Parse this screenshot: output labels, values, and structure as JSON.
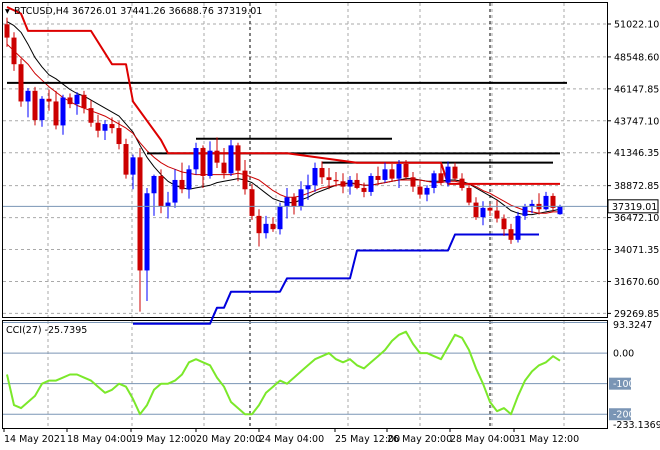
{
  "header": {
    "symbol_info": "BTCUSD,H4  36726.01 37441.26 36688.76 37319.01",
    "indicator_info": "CCI(27) -25.7395"
  },
  "colors": {
    "bull": "#0000ff",
    "bear": "#cc0000",
    "grid": "#a9a9a9",
    "ma_black": "#000000",
    "ma_red": "#cc0000",
    "ladder_red": "#dd0000",
    "ladder_blue": "#0000dd",
    "cci": "#7be82a",
    "level_line": "#7a95b5",
    "current_price_line": "#7a95b5"
  },
  "chart_data": [
    {
      "type": "candlestick",
      "title": "",
      "ylim": [
        29000,
        52600
      ],
      "y_ticks": [
        "51022.10",
        "48548.60",
        "46147.85",
        "43747.10",
        "41346.35",
        "38872.85",
        "36472.10",
        "34071.35",
        "31670.60",
        "29269.85"
      ],
      "current_price_label": "37319.01",
      "current_price": 37319.01,
      "x_labels": [
        "14 May 2021",
        "18 May 04:00",
        "19 May 12:00",
        "20 May 20:00",
        "24 May 04:00",
        "25 May 12:00",
        "26 May 20:00",
        "28 May 04:00",
        "31 May 12:00"
      ],
      "candles": [
        [
          51000,
          51500,
          49300,
          50000
        ],
        [
          50000,
          50400,
          47500,
          48000
        ],
        [
          48000,
          48400,
          44800,
          45200
        ],
        [
          45200,
          46200,
          44000,
          46000
        ],
        [
          46000,
          46300,
          43400,
          43800
        ],
        [
          43800,
          45600,
          43300,
          45400
        ],
        [
          45400,
          46100,
          44500,
          45200
        ],
        [
          45200,
          46000,
          43100,
          43400
        ],
        [
          43400,
          45700,
          42700,
          45500
        ],
        [
          45500,
          45800,
          44700,
          45000
        ],
        [
          45000,
          45900,
          44200,
          45700
        ],
        [
          45700,
          46000,
          44300,
          44700
        ],
        [
          44700,
          45300,
          43300,
          43600
        ],
        [
          43600,
          44200,
          42500,
          43000
        ],
        [
          43000,
          43800,
          42300,
          43500
        ],
        [
          43500,
          44000,
          42800,
          43200
        ],
        [
          43200,
          43700,
          41600,
          42000
        ],
        [
          42000,
          42400,
          39400,
          39700
        ],
        [
          39700,
          41200,
          38600,
          41000
        ],
        [
          41000,
          41700,
          29400,
          32500
        ],
        [
          32500,
          38700,
          30200,
          38300
        ],
        [
          38300,
          39700,
          36600,
          39600
        ],
        [
          39600,
          40100,
          36800,
          37300
        ],
        [
          37300,
          38400,
          36400,
          37600
        ],
        [
          37600,
          40100,
          37200,
          39300
        ],
        [
          39300,
          40600,
          38300,
          38600
        ],
        [
          38600,
          40400,
          37900,
          40100
        ],
        [
          40100,
          42100,
          39700,
          41700
        ],
        [
          41700,
          41900,
          38700,
          39600
        ],
        [
          39600,
          42200,
          39400,
          41500
        ],
        [
          41500,
          42500,
          40200,
          40600
        ],
        [
          40600,
          41700,
          39400,
          39800
        ],
        [
          39800,
          42300,
          39600,
          41900
        ],
        [
          41900,
          42100,
          39200,
          40000
        ],
        [
          40000,
          40800,
          38200,
          38600
        ],
        [
          38600,
          39000,
          36300,
          36600
        ],
        [
          36600,
          37100,
          34300,
          35300
        ],
        [
          35300,
          36600,
          34900,
          36000
        ],
        [
          36000,
          36500,
          35400,
          35600
        ],
        [
          35600,
          37600,
          35200,
          37300
        ],
        [
          37300,
          38700,
          36400,
          38000
        ],
        [
          38000,
          38300,
          36700,
          37300
        ],
        [
          37300,
          39200,
          37000,
          38600
        ],
        [
          38600,
          39700,
          37800,
          38900
        ],
        [
          38900,
          40600,
          38400,
          40200
        ],
        [
          40200,
          40700,
          39000,
          39500
        ],
        [
          39500,
          40200,
          38600,
          39300
        ],
        [
          39300,
          39900,
          38800,
          39200
        ],
        [
          39200,
          39800,
          38300,
          38800
        ],
        [
          38800,
          39600,
          38200,
          39300
        ],
        [
          39300,
          39800,
          38600,
          38700
        ],
        [
          38700,
          39100,
          38000,
          38400
        ],
        [
          38400,
          39800,
          38100,
          39600
        ],
        [
          39600,
          40300,
          38900,
          39300
        ],
        [
          39300,
          40600,
          39100,
          40100
        ],
        [
          40100,
          40500,
          39200,
          39400
        ],
        [
          39400,
          40800,
          38700,
          40500
        ],
        [
          40500,
          40800,
          39300,
          39500
        ],
        [
          39500,
          39900,
          38400,
          38800
        ],
        [
          38800,
          39300,
          37900,
          38200
        ],
        [
          38200,
          38900,
          37700,
          38700
        ],
        [
          38700,
          40000,
          38300,
          39800
        ],
        [
          39800,
          40500,
          38900,
          39100
        ],
        [
          39100,
          40700,
          38800,
          40300
        ],
        [
          40300,
          40600,
          39200,
          39400
        ],
        [
          39400,
          39800,
          38500,
          38700
        ],
        [
          38700,
          39000,
          37400,
          37600
        ],
        [
          37600,
          38000,
          36300,
          36500
        ],
        [
          36500,
          37700,
          35900,
          37200
        ],
        [
          37200,
          37500,
          36600,
          37000
        ],
        [
          37000,
          37800,
          36100,
          36400
        ],
        [
          36400,
          36700,
          35100,
          35600
        ],
        [
          35600,
          36000,
          34500,
          34800
        ],
        [
          34800,
          36900,
          34600,
          36600
        ],
        [
          36600,
          37500,
          36300,
          37300
        ],
        [
          37300,
          37800,
          36800,
          37500
        ],
        [
          37500,
          38300,
          36700,
          37100
        ],
        [
          37100,
          38400,
          37000,
          38100
        ],
        [
          38100,
          38300,
          36900,
          37200
        ],
        [
          36726.01,
          37441.26,
          36688.76,
          37319.01
        ]
      ],
      "series": [
        {
          "values": [
            51200,
            50900,
            50400,
            49500,
            48500,
            47800,
            47200,
            46900,
            46500,
            46100,
            45800,
            45600,
            45300,
            45000,
            44700,
            44400,
            44100,
            43500,
            42900,
            41900,
            41000,
            40300,
            39700,
            39200,
            38900,
            38700,
            38600,
            38700,
            38800,
            38900,
            39100,
            39200,
            39300,
            39400,
            39300,
            39100,
            38700,
            38300,
            37900,
            37700,
            37600,
            37600,
            37800,
            38000,
            38300,
            38500,
            38700,
            38900,
            39000,
            39100,
            39000,
            38900,
            38900,
            39000,
            39100,
            39200,
            39300,
            39400,
            39400,
            39300,
            39200,
            39200,
            39200,
            39300,
            39300,
            39200,
            39000,
            38700,
            38400,
            38100,
            37800,
            37400,
            37000,
            36800,
            36700,
            36700,
            36800,
            36900,
            37000,
            37100
          ]
        },
        {
          "values": [
            49500,
            49000,
            48500,
            48000,
            47300,
            46800,
            46300,
            45900,
            45500,
            45200,
            44900,
            44700,
            44500,
            44300,
            44100,
            43800,
            43500,
            43200,
            42800,
            42100,
            41500,
            41000,
            40600,
            40300,
            40100,
            39900,
            39800,
            39700,
            39700,
            39700,
            39700,
            39700,
            39700,
            39800,
            39700,
            39500,
            39300,
            38900,
            38500,
            38200,
            38000,
            38000,
            38100,
            38300,
            38500,
            38700,
            38800,
            38900,
            39000,
            39000,
            39000,
            38900,
            38900,
            39000,
            39100,
            39200,
            39300,
            39300,
            39300,
            39300,
            39200,
            39100,
            39100,
            39200,
            39200,
            39100,
            39000,
            38800,
            38500,
            38300,
            38000,
            37700,
            37400,
            37200,
            37000,
            36900,
            36800,
            36800,
            36900,
            36900
          ]
        },
        {
          "segments": [
            [
              0,
              80,
              46600
            ],
            [
              20,
              79,
              41300
            ],
            [
              27,
              55,
              42400
            ],
            [
              45,
              78,
              40600
            ]
          ]
        },
        {
          "x": [
            0,
            2,
            3,
            12,
            15,
            17,
            18,
            22,
            23,
            26,
            30,
            40,
            50,
            62,
            63,
            79
          ],
          "values": [
            52300,
            51800,
            50500,
            50500,
            48000,
            48000,
            45200,
            42300,
            41300,
            41300,
            41300,
            41300,
            40600,
            40600,
            39000,
            39000
          ]
        },
        {
          "x": [
            18,
            29,
            30,
            31,
            32,
            39,
            40,
            49,
            50,
            63,
            64,
            76
          ],
          "values": [
            28500,
            28500,
            29700,
            29700,
            30900,
            30900,
            31900,
            31900,
            34000,
            34000,
            35200,
            35200
          ]
        }
      ]
    },
    {
      "type": "line",
      "title": "",
      "ylim": [
        -245,
        105
      ],
      "y_ticks": [
        "93.3247",
        "0.00",
        "-100",
        "-200",
        "-233.1369"
      ],
      "values": [
        -70,
        -170,
        -180,
        -160,
        -140,
        -100,
        -90,
        -90,
        -80,
        -70,
        -70,
        -80,
        -90,
        -110,
        -130,
        -120,
        -100,
        -110,
        -150,
        -200,
        -170,
        -120,
        -100,
        -100,
        -90,
        -70,
        -30,
        -20,
        -30,
        -40,
        -80,
        -110,
        -160,
        -180,
        -200,
        -200,
        -170,
        -130,
        -110,
        -90,
        -100,
        -80,
        -60,
        -40,
        -20,
        -10,
        0,
        -20,
        -30,
        -20,
        -40,
        -50,
        -30,
        -10,
        10,
        40,
        60,
        70,
        30,
        0,
        0,
        -10,
        -20,
        20,
        60,
        50,
        10,
        -50,
        -100,
        -160,
        -190,
        -180,
        -200,
        -140,
        -90,
        -60,
        -40,
        -30,
        -10,
        -25
      ]
    }
  ]
}
